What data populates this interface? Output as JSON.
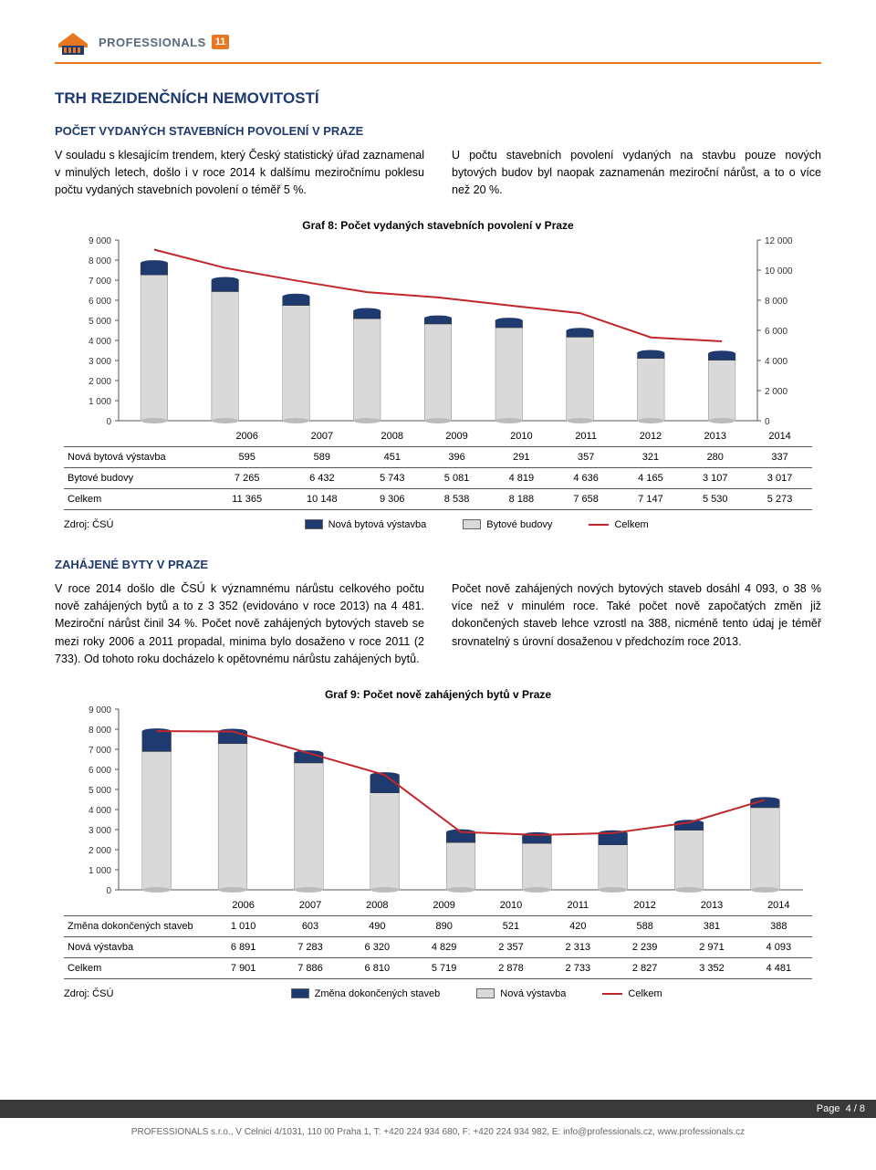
{
  "logo": {
    "brand": "PROFESSIONALS",
    "badge": "11"
  },
  "colors": {
    "heading": "#1f3a6e",
    "accent": "#e87722",
    "bar1_fill": "#d9d9d9",
    "bar1_top": "#1f3a6e",
    "bar2_fill": "#b0b0b0",
    "bar2_top": "#4a4a4a",
    "line": "#c0272d",
    "grid": "#d0d0d0",
    "axis_text": "#333"
  },
  "page_title": "TRH REZIDENČNÍCH NEMOVITOSTÍ",
  "section1": {
    "title": "POČET VYDANÝCH STAVEBNÍCH POVOLENÍ V PRAZE",
    "left": "V souladu s klesajícím trendem, který Český statistický úřad zaznamenal v minulých letech, došlo i v roce 2014 k dalšímu meziročnímu poklesu počtu vydaných stavebních povolení o téměř 5 %.",
    "right": "U počtu stavebních povolení vydaných na stavbu pouze nových bytových budov byl naopak zaznamenán meziroční nárůst, a to o více než 20 %."
  },
  "chart8": {
    "title": "Graf 8: Počet vydaných stavebních povolení v Praze",
    "years": [
      "2006",
      "2007",
      "2008",
      "2009",
      "2010",
      "2011",
      "2012",
      "2013",
      "2014"
    ],
    "left_axis": {
      "min": 0,
      "max": 9000,
      "step": 1000
    },
    "right_axis": {
      "min": 0,
      "max": 12000,
      "step": 2000
    },
    "rows": [
      {
        "label": "Nová bytová výstavba",
        "values": [
          595,
          589,
          451,
          396,
          291,
          357,
          321,
          280,
          337
        ]
      },
      {
        "label": "Bytové budovy",
        "values": [
          7265,
          6432,
          5743,
          5081,
          4819,
          4636,
          4165,
          3107,
          3017
        ]
      },
      {
        "label": "Celkem",
        "values": [
          11365,
          10148,
          9306,
          8538,
          8188,
          7658,
          7147,
          5530,
          5273
        ]
      }
    ],
    "legend": {
      "src": "Zdroj: ČSÚ",
      "items": [
        "Nová bytová výstavba",
        "Bytové budovy",
        "Celkem"
      ]
    }
  },
  "section2": {
    "title": "ZAHÁJENÉ BYTY V PRAZE",
    "left": "V roce 2014 došlo dle ČSÚ k významnému nárůstu celkového počtu nově zahájených bytů a to z 3 352 (evidováno v roce 2013) na 4 481. Meziroční nárůst činil 34 %. Počet nově zahájených bytových staveb se mezi roky 2006 a 2011 propadal, minima bylo dosaženo v roce 2011 (2 733). Od tohoto roku docházelo k opětovnému nárůstu zahájených bytů.",
    "right": "Počet nově zahájených nových bytových staveb dosáhl 4 093, o 38 % více než v minulém roce. Také počet nově započatých změn již dokončených staveb lehce vzrostl na 388, nicméně tento údaj je téměř srovnatelný s úrovní dosaženou v předchozím roce 2013."
  },
  "chart9": {
    "title": "Graf 9: Počet nově zahájených bytů v Praze",
    "years": [
      "2006",
      "2007",
      "2008",
      "2009",
      "2010",
      "2011",
      "2012",
      "2013",
      "2014"
    ],
    "axis": {
      "min": 0,
      "max": 9000,
      "step": 1000
    },
    "rows": [
      {
        "label": "Změna dokončených staveb",
        "values": [
          1010,
          603,
          490,
          890,
          521,
          420,
          588,
          381,
          388
        ]
      },
      {
        "label": "Nová výstavba",
        "values": [
          6891,
          7283,
          6320,
          4829,
          2357,
          2313,
          2239,
          2971,
          4093
        ]
      },
      {
        "label": "Celkem",
        "values": [
          7901,
          7886,
          6810,
          5719,
          2878,
          2733,
          2827,
          3352,
          4481
        ]
      }
    ],
    "legend": {
      "src": "Zdroj: ČSÚ",
      "items": [
        "Změna dokončených staveb",
        "Nová výstavba",
        "Celkem"
      ]
    }
  },
  "footer": {
    "page": "Page  4 / 8",
    "line": "PROFESSIONALS s.r.o., V Celnici 4/1031, 110 00 Praha 1, T: +420 224 934 680, F: +420 224 934 982, E: info@professionals.cz, www.professionals.cz"
  }
}
